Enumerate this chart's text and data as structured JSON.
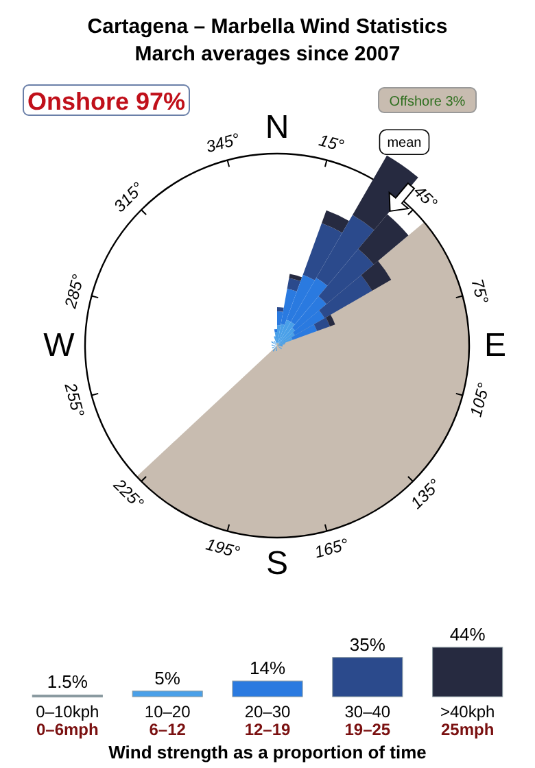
{
  "chart_data": [
    {
      "type": "other",
      "title": "Cartagena – Marbella Wind Statistics",
      "subtitle": "March averages since 2007",
      "annotations": [
        "Onshore 97%",
        "Offshore 3%",
        "mean",
        "N",
        "15°",
        "45°",
        "75°",
        "E",
        "105°",
        "135°",
        "165°",
        "S",
        "195°",
        "225°",
        "255°",
        "W",
        "285°",
        "315°",
        "345°"
      ]
    },
    {
      "type": "bar",
      "categories": [
        "0–10kph\n0–6mph",
        "10–20\n6–12",
        "20–30\n12–19",
        "30–40\n19–25",
        ">40kph\n25mph"
      ],
      "values": [
        1.5,
        5,
        14,
        35,
        44
      ],
      "value_labels": [
        "1.5%",
        "5%",
        "14%",
        "35%",
        "44%"
      ],
      "colors": [
        "#8a9aa0",
        "#4aa0e8",
        "#2a7ae0",
        "#2b4a8c",
        "#262a40"
      ],
      "xlabel": "Wind strength as a proportion of time"
    }
  ]
}
